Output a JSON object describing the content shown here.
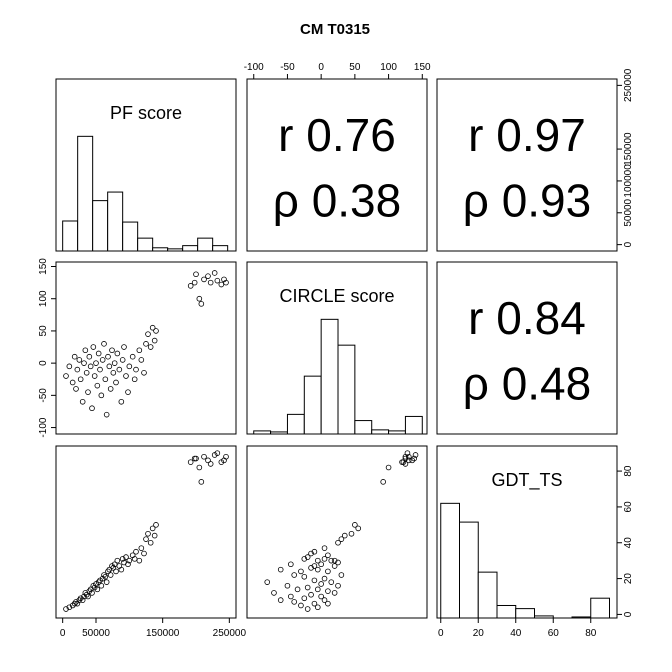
{
  "chart_data": {
    "type": "pairs",
    "title": "CM T0315",
    "variables": [
      {
        "name": "PF score",
        "lim": [
          -10000,
          260000
        ],
        "ticks": [
          0,
          50000,
          150000,
          250000
        ],
        "ticks_right": [
          0,
          50000,
          100000,
          150000,
          250000
        ],
        "bins": [
          0,
          22500,
          45000,
          67500,
          90000,
          112500,
          135000,
          157500,
          180000,
          202500,
          225000,
          247500
        ],
        "counts": [
          28,
          107,
          47,
          55,
          27,
          12,
          3,
          2,
          5,
          12,
          5
        ]
      },
      {
        "name": "CIRCLE score",
        "lim": [
          -110,
          157
        ],
        "ticks": [
          -100,
          -50,
          0,
          50,
          100,
          150
        ],
        "bins": [
          -100,
          -75,
          -50,
          -25,
          0,
          25,
          50,
          75,
          100,
          125,
          150
        ],
        "counts": [
          3,
          2,
          19,
          56,
          111,
          86,
          13,
          4,
          3,
          17
        ]
      },
      {
        "name": "GDT_TS",
        "lim": [
          -2,
          94
        ],
        "ticks": [
          0,
          20,
          40,
          60,
          80
        ],
        "bins": [
          0,
          10,
          20,
          30,
          40,
          50,
          60,
          70,
          80,
          90
        ],
        "counts": [
          110,
          92,
          44,
          12,
          9,
          2,
          0,
          1,
          19
        ]
      }
    ],
    "observations": [
      [
        5000,
        10000,
        15000,
        18000,
        20000,
        22000,
        25000,
        27000,
        30000,
        32000,
        34000,
        36000,
        38000,
        40000,
        42000,
        44000,
        46000,
        48000,
        50000,
        52000,
        54000,
        56000,
        58000,
        60000,
        62000,
        64000,
        66000,
        68000,
        70000,
        72000,
        74000,
        76000,
        78000,
        80000,
        82000,
        85000,
        88000,
        90000,
        92000,
        95000,
        98000,
        100000,
        105000,
        108000,
        110000,
        115000,
        118000,
        122000,
        125000,
        128000,
        132000,
        135000,
        138000,
        140000,
        192000,
        198000,
        205000,
        208000,
        212000,
        218000,
        222000,
        228000,
        232000,
        238000,
        242000,
        245000,
        200000
      ],
      [
        -20,
        -5,
        -30,
        10,
        -40,
        -10,
        5,
        -25,
        -60,
        0,
        20,
        -15,
        -45,
        10,
        -5,
        -70,
        25,
        -20,
        0,
        -35,
        15,
        -10,
        -50,
        5,
        30,
        -25,
        -80,
        10,
        -5,
        -40,
        20,
        -15,
        0,
        -30,
        15,
        -10,
        -60,
        5,
        25,
        -20,
        -45,
        -5,
        10,
        -25,
        -10,
        20,
        5,
        -15,
        30,
        45,
        25,
        55,
        35,
        50,
        120,
        125,
        100,
        92,
        130,
        135,
        125,
        140,
        128,
        122,
        130,
        125,
        138
      ],
      [
        3,
        4,
        5,
        6,
        7,
        6,
        8,
        9,
        8,
        10,
        12,
        11,
        10,
        13,
        14,
        12,
        16,
        15,
        17,
        14,
        18,
        19,
        16,
        20,
        22,
        21,
        18,
        24,
        25,
        22,
        27,
        26,
        28,
        24,
        30,
        27,
        25,
        31,
        29,
        32,
        28,
        30,
        33,
        31,
        35,
        30,
        37,
        34,
        42,
        45,
        40,
        48,
        44,
        50,
        85,
        87,
        82,
        74,
        88,
        86,
        84,
        89,
        90,
        85,
        86,
        88,
        87
      ]
    ],
    "correlations": [
      {
        "r": "r 0.76",
        "rho": "ρ 0.38"
      },
      {
        "r": "r 0.97",
        "rho": "ρ 0.93"
      },
      {
        "r": "r 0.84",
        "rho": "ρ 0.48"
      }
    ]
  }
}
